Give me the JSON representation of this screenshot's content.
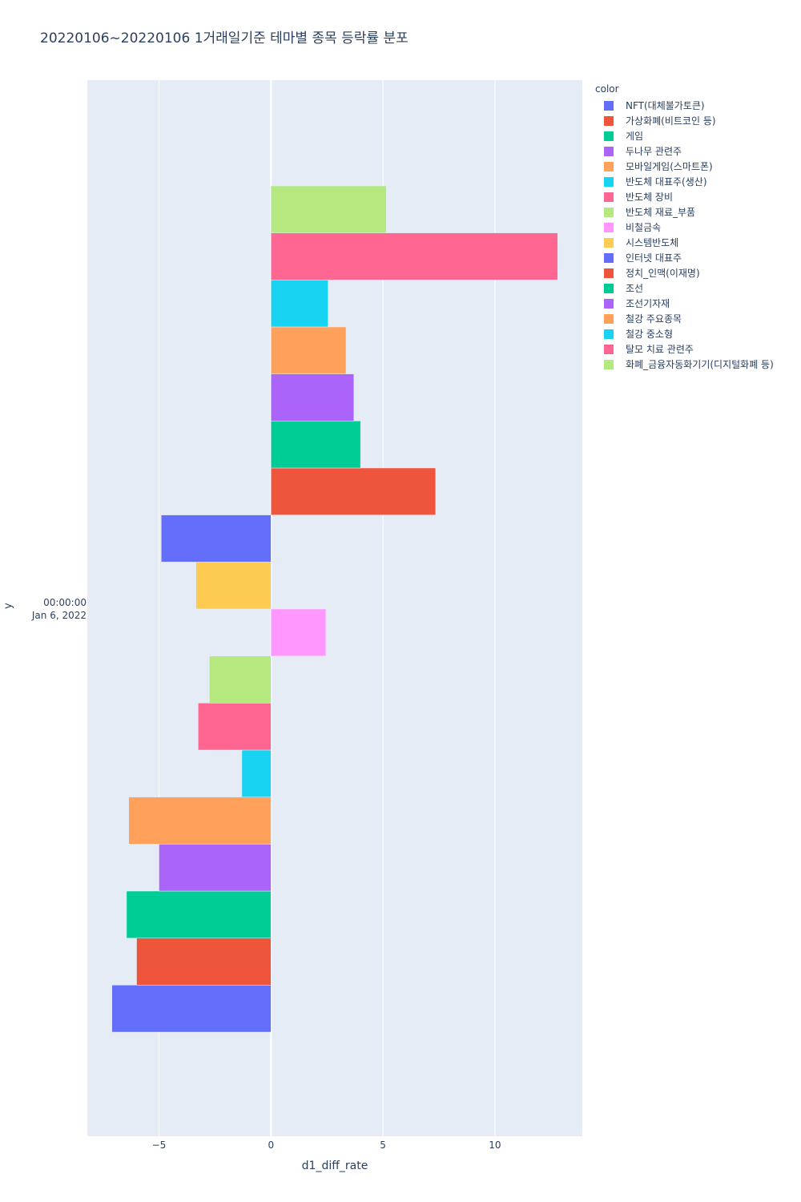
{
  "title": "20220106~20220106 1거래일기준 테마별 종목 등락률 분포",
  "legend_title": "color",
  "chart_data": {
    "type": "bar",
    "orientation": "horizontal",
    "barmode": "group",
    "title": "20220106~20220106 1거래일기준 테마별 종목 등락률 분포",
    "xlabel": "d1_diff_rate",
    "ylabel": "y",
    "xlim": [
      -8.2,
      13.9
    ],
    "xticks": [
      -5,
      0,
      5,
      10
    ],
    "xtick_labels": [
      "−5",
      "0",
      "5",
      "10"
    ],
    "ytick_label_line1": "00:00:00",
    "ytick_label_line2": "Jan 6, 2022",
    "grid": true,
    "legend_position": "right",
    "series": [
      {
        "name": "NFT(대체불가토큰)",
        "color": "#636efa",
        "value": -7.1
      },
      {
        "name": "가상화폐(비트코인 등)",
        "color": "#EF553B",
        "value": -6.0
      },
      {
        "name": "게임",
        "color": "#00cc96",
        "value": -6.45
      },
      {
        "name": "두나무 관련주",
        "color": "#ab63fa",
        "value": -5.0
      },
      {
        "name": "모바일게임(스마트폰)",
        "color": "#FFA15A",
        "value": -6.35
      },
      {
        "name": "반도체 대표주(생산)",
        "color": "#19d3f3",
        "value": -1.3
      },
      {
        "name": "반도체 장비",
        "color": "#FF6692",
        "value": -3.25
      },
      {
        "name": "반도체 재료_부품",
        "color": "#B6E880",
        "value": -2.75
      },
      {
        "name": "비철금속",
        "color": "#FF97FF",
        "value": 2.45
      },
      {
        "name": "시스템반도체",
        "color": "#FECB52",
        "value": -3.35
      },
      {
        "name": "인터넷 대표주",
        "color": "#636efa",
        "value": -4.9
      },
      {
        "name": "정치_인맥(이재명)",
        "color": "#EF553B",
        "value": 7.35
      },
      {
        "name": "조선",
        "color": "#00cc96",
        "value": 4.0
      },
      {
        "name": "조선기자재",
        "color": "#ab63fa",
        "value": 3.7
      },
      {
        "name": "철강 주요종목",
        "color": "#FFA15A",
        "value": 3.35
      },
      {
        "name": "철강 중소형",
        "color": "#19d3f3",
        "value": 2.55
      },
      {
        "name": "탈모 치료 관련주",
        "color": "#FF6692",
        "value": 12.8
      },
      {
        "name": "화폐_금융자동화기기(디지털화폐 등)",
        "color": "#B6E880",
        "value": 5.15
      }
    ]
  }
}
